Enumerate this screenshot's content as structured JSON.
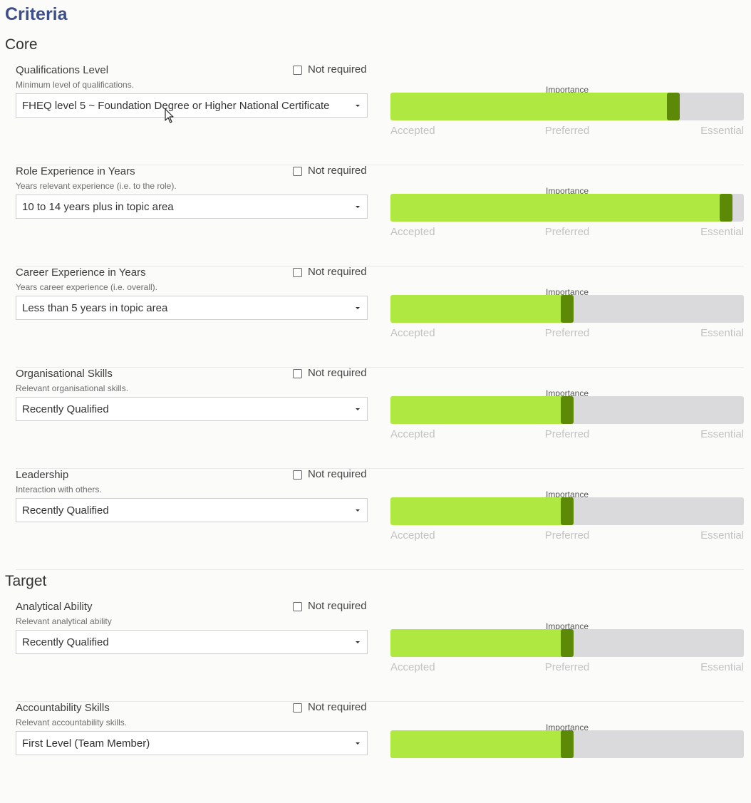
{
  "page": {
    "title": "Criteria"
  },
  "sections": {
    "core": {
      "heading": "Core"
    },
    "target": {
      "heading": "Target"
    }
  },
  "common": {
    "not_required_label": "Not required",
    "importance_label": "Importance",
    "scale": {
      "low": "Accepted",
      "mid": "Preferred",
      "high": "Essential"
    }
  },
  "criteria": [
    {
      "label": "Qualifications Level",
      "description": "Minimum level of qualifications.",
      "selected": "FHEQ level 5 ~ Foundation Degree or Higher National Certificate",
      "not_required": false,
      "importance": 0.8
    },
    {
      "label": "Role Experience in Years",
      "description": "Years relevant experience (i.e. to the role).",
      "selected": "10 to 14 years plus in topic area",
      "not_required": false,
      "importance": 0.95
    },
    {
      "label": "Career Experience in Years",
      "description": "Years career experience (i.e. overall).",
      "selected": "Less than 5 years in topic area",
      "not_required": false,
      "importance": 0.5
    },
    {
      "label": "Organisational Skills",
      "description": "Relevant organisational skills.",
      "selected": "Recently Qualified",
      "not_required": false,
      "importance": 0.5
    },
    {
      "label": "Leadership",
      "description": "Interaction with others.",
      "selected": "Recently Qualified",
      "not_required": false,
      "importance": 0.5
    },
    {
      "label": "Analytical Ability",
      "description": "Relevant analytical ability",
      "selected": "Recently Qualified",
      "not_required": false,
      "importance": 0.5
    },
    {
      "label": "Accountability Skills",
      "description": "Relevant accountability skills.",
      "selected": "First Level (Team Member)",
      "not_required": false,
      "importance": 0.5
    }
  ],
  "colors": {
    "title": "#3d4f8a",
    "fill": "#b0e842",
    "handle": "#5c8a07",
    "track": "#dadadc"
  }
}
